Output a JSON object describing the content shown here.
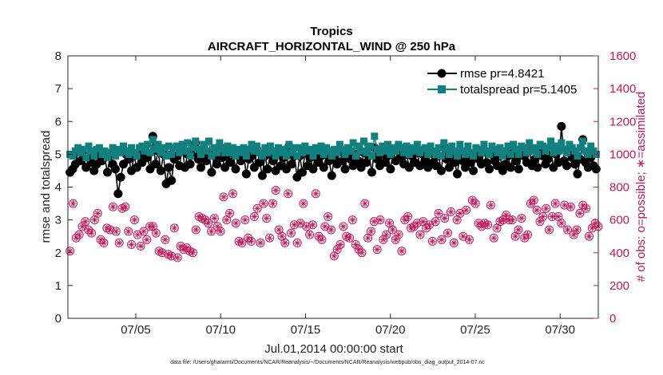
{
  "chart_data": {
    "type": "line",
    "title": "Tropics",
    "subtitle": "AIRCRAFT_HORIZONTAL_WIND @ 250 hPa",
    "xlabel": "Jul.01,2014 00:00:00 start",
    "ylabel": "rmse and totalspread",
    "ylabel_right": "# of obs: o=possible; ∗=assimilated",
    "footnote": "data file: /Users/gharamti/Documents/NCAR/Reanalysis/~/Documents/NCAR/Reanalysis/webpub/obs_diag_output_2014-07.nc",
    "xlim": [
      1.0,
      32.25
    ],
    "ylim": [
      0,
      8
    ],
    "ylim_right": [
      0,
      1600
    ],
    "x_ticks": [
      5,
      10,
      15,
      20,
      25,
      30
    ],
    "x_tick_labels": [
      "07/05",
      "07/10",
      "07/15",
      "07/20",
      "07/25",
      "07/30"
    ],
    "y_ticks": [
      0,
      1,
      2,
      3,
      4,
      5,
      6,
      7,
      8
    ],
    "y_ticks_right": [
      0,
      200,
      400,
      600,
      800,
      1000,
      1200,
      1400,
      1600
    ],
    "legend_position": "top-right",
    "colors": {
      "rmse": "#000000",
      "totalspread": "#138080",
      "obs": "#c2185b"
    },
    "series": [
      {
        "name": "rmse pr=4.8421",
        "axis": "left",
        "marker": "circle",
        "values": [
          4.45,
          4.55,
          4.7,
          5.1,
          4.8,
          4.95,
          4.6,
          4.9,
          4.75,
          4.5,
          4.7,
          5.05,
          4.8,
          4.9,
          4.45,
          4.95,
          4.7,
          4.55,
          3.8,
          4.3,
          4.7,
          5.0,
          4.85,
          4.5,
          4.95,
          4.6,
          5.0,
          4.75,
          5.15,
          4.9,
          4.55,
          5.55,
          4.7,
          5.1,
          4.5,
          5.0,
          4.1,
          4.6,
          4.2,
          4.85,
          4.95,
          4.65,
          5.2,
          4.6,
          5.0,
          4.7,
          5.05,
          5.35,
          4.85,
          4.6,
          5.15,
          4.8,
          5.05,
          4.45,
          4.95,
          4.7,
          5.25,
          4.9,
          4.6,
          5.0,
          4.75,
          5.05,
          4.55,
          4.95,
          4.8,
          5.0,
          4.4,
          4.85,
          4.95,
          4.6,
          5.15,
          4.75,
          4.35,
          4.95,
          4.55,
          5.0,
          4.8,
          4.5,
          5.05,
          4.65,
          4.9,
          4.55,
          5.25,
          4.7,
          4.95,
          4.3,
          4.95,
          4.45,
          5.05,
          4.65,
          4.9,
          4.55,
          5.1,
          4.75,
          4.95,
          4.6,
          5.0,
          4.8,
          4.35,
          4.95,
          4.7,
          5.15,
          4.8,
          4.55,
          5.05,
          4.85,
          4.65,
          5.0,
          4.8,
          4.6,
          5.05,
          4.75,
          4.95,
          4.45,
          5.2,
          4.85,
          4.65,
          5.0,
          4.75,
          4.95,
          4.55,
          5.1,
          4.8,
          5.25,
          4.9,
          4.7,
          5.0,
          4.6,
          4.95,
          4.75,
          5.05,
          4.65,
          5.0,
          4.8,
          4.6,
          5.1,
          4.75,
          4.65,
          4.95,
          4.5,
          5.25,
          4.85,
          4.6,
          5.0,
          4.75,
          4.4,
          5.0,
          4.8,
          4.6,
          4.95,
          4.75,
          4.5,
          5.05,
          4.85,
          4.7,
          5.1,
          4.75,
          4.55,
          5.0,
          4.8,
          4.65,
          4.95,
          4.5,
          4.7,
          4.95,
          4.6,
          5.05,
          4.8,
          4.55,
          5.0,
          4.95,
          4.75,
          5.1,
          4.65,
          4.85,
          4.6,
          5.05,
          4.95,
          4.7,
          4.85,
          5.15,
          4.6,
          5.0,
          4.75,
          5.85,
          4.8,
          4.65,
          5.05,
          4.9,
          4.7,
          4.4,
          4.85,
          5.45,
          4.75,
          4.6,
          4.9,
          4.65,
          4.55
        ]
      },
      {
        "name": "totalspread pr=5.1405",
        "axis": "left",
        "marker": "square",
        "values": [
          5.0,
          4.95,
          5.1,
          5.2,
          5.05,
          5.15,
          4.9,
          5.25,
          5.1,
          4.95,
          5.15,
          5.2,
          5.0,
          5.1,
          4.9,
          5.05,
          5.2,
          4.95,
          5.15,
          5.05,
          5.25,
          5.1,
          5.0,
          5.2,
          5.05,
          4.95,
          5.2,
          5.25,
          5.1,
          5.3,
          5.05,
          5.45,
          5.15,
          5.3,
          5.05,
          5.2,
          4.95,
          5.25,
          5.0,
          5.2,
          5.25,
          5.05,
          5.3,
          5.1,
          5.35,
          4.95,
          5.2,
          5.4,
          5.15,
          5.0,
          5.3,
          5.1,
          5.4,
          4.95,
          5.2,
          5.05,
          5.35,
          5.15,
          5.05,
          5.25,
          5.05,
          5.2,
          4.95,
          5.15,
          5.05,
          5.2,
          4.95,
          5.15,
          5.3,
          5.1,
          5.25,
          5.05,
          4.95,
          5.2,
          5.05,
          5.25,
          5.1,
          4.95,
          5.2,
          5.05,
          5.15,
          4.95,
          5.3,
          5.05,
          5.2,
          4.95,
          5.2,
          5.05,
          5.25,
          5.1,
          5.15,
          4.95,
          5.2,
          5.1,
          5.25,
          5.0,
          5.2,
          5.1,
          4.95,
          5.15,
          5.05,
          5.3,
          5.15,
          5.0,
          5.2,
          5.1,
          5.35,
          4.95,
          5.25,
          5.1,
          5.4,
          5.05,
          5.25,
          4.95,
          5.55,
          5.15,
          5.05,
          5.25,
          5.1,
          5.3,
          5.0,
          5.2,
          5.1,
          5.3,
          5.2,
          5.05,
          5.25,
          5.0,
          5.2,
          5.1,
          5.3,
          5.05,
          5.15,
          5.2,
          5.0,
          5.25,
          5.1,
          5.0,
          5.2,
          4.95,
          5.35,
          5.15,
          5.0,
          5.25,
          5.1,
          4.95,
          5.3,
          5.1,
          5.0,
          5.25,
          5.05,
          4.95,
          5.2,
          5.15,
          5.05,
          5.3,
          5.1,
          5.0,
          5.25,
          5.15,
          5.05,
          5.2,
          4.95,
          5.1,
          5.25,
          5.0,
          5.3,
          5.15,
          5.0,
          5.25,
          5.2,
          5.05,
          5.35,
          5.1,
          5.2,
          5.0,
          5.3,
          5.25,
          5.1,
          5.2,
          5.4,
          5.05,
          5.25,
          5.1,
          5.35,
          5.15,
          5.05,
          5.3,
          5.2,
          5.1,
          4.95,
          5.2,
          5.4,
          5.1,
          5.0,
          5.25,
          5.1,
          5.0
        ]
      },
      {
        "name": "possible",
        "axis": "right",
        "marker": "circle-open",
        "values": [
          410,
          700,
          490,
          510,
          560,
          590,
          540,
          520,
          600,
          640,
          480,
          460,
          550,
          540,
          680,
          530,
          460,
          670,
          680,
          530,
          450,
          600,
          510,
          440,
          530,
          480,
          560,
          560,
          520,
          410,
          400,
          480,
          390,
          380,
          550,
          370,
          440,
          420,
          430,
          410,
          400,
          540,
          620,
          610,
          600,
          580,
          530,
          610,
          560,
          530,
          740,
          600,
          640,
          760,
          580,
          470,
          460,
          600,
          490,
          470,
          620,
          670,
          460,
          700,
          610,
          490,
          700,
          780,
          540,
          500,
          460,
          760,
          520,
          570,
          460,
          580,
          700,
          560,
          510,
          570,
          760,
          500,
          480,
          560,
          620,
          540,
          380,
          420,
          450,
          560,
          500,
          490,
          600,
          450,
          420,
          400,
          700,
          490,
          530,
          590,
          420,
          600,
          480,
          510,
          580,
          540,
          480,
          510,
          410,
          600,
          620,
          550,
          560,
          580,
          510,
          590,
          550,
          570,
          470,
          590,
          640,
          480,
          610,
          520,
          650,
          460,
          600,
          640,
          500,
          660,
          480,
          720,
          700,
          580,
          560,
          580,
          570,
          690,
          490,
          550,
          590,
          600,
          630,
          600,
          600,
          500,
          540,
          610,
          490,
          510,
          700,
          720,
          660,
          590,
          620,
          670,
          540,
          620,
          700,
          620,
          580,
          690,
          540,
          680,
          510,
          540,
          640,
          690,
          670,
          500,
          550,
          580,
          560
        ]
      },
      {
        "name": "assimilated",
        "axis": "right",
        "marker": "asterisk",
        "values": [
          410,
          700,
          490,
          510,
          560,
          590,
          540,
          520,
          600,
          640,
          480,
          460,
          550,
          540,
          680,
          530,
          460,
          670,
          680,
          530,
          450,
          600,
          510,
          440,
          530,
          480,
          560,
          560,
          520,
          410,
          400,
          480,
          390,
          380,
          550,
          370,
          440,
          420,
          430,
          410,
          400,
          540,
          620,
          610,
          600,
          580,
          530,
          610,
          560,
          530,
          740,
          600,
          640,
          760,
          580,
          470,
          460,
          600,
          490,
          470,
          620,
          670,
          460,
          700,
          610,
          490,
          700,
          780,
          540,
          500,
          460,
          760,
          520,
          570,
          460,
          580,
          700,
          560,
          510,
          570,
          760,
          500,
          480,
          560,
          620,
          540,
          380,
          420,
          450,
          560,
          500,
          490,
          600,
          450,
          420,
          400,
          700,
          490,
          530,
          590,
          420,
          600,
          480,
          510,
          580,
          540,
          480,
          510,
          410,
          600,
          620,
          550,
          560,
          580,
          510,
          590,
          550,
          570,
          470,
          590,
          640,
          480,
          610,
          520,
          650,
          460,
          600,
          640,
          500,
          660,
          480,
          720,
          700,
          580,
          560,
          580,
          570,
          690,
          490,
          550,
          590,
          600,
          630,
          600,
          600,
          500,
          540,
          610,
          490,
          510,
          700,
          720,
          660,
          590,
          620,
          670,
          540,
          620,
          700,
          620,
          580,
          690,
          540,
          680,
          510,
          540,
          640,
          690,
          670,
          500,
          550,
          580,
          560
        ]
      }
    ]
  }
}
